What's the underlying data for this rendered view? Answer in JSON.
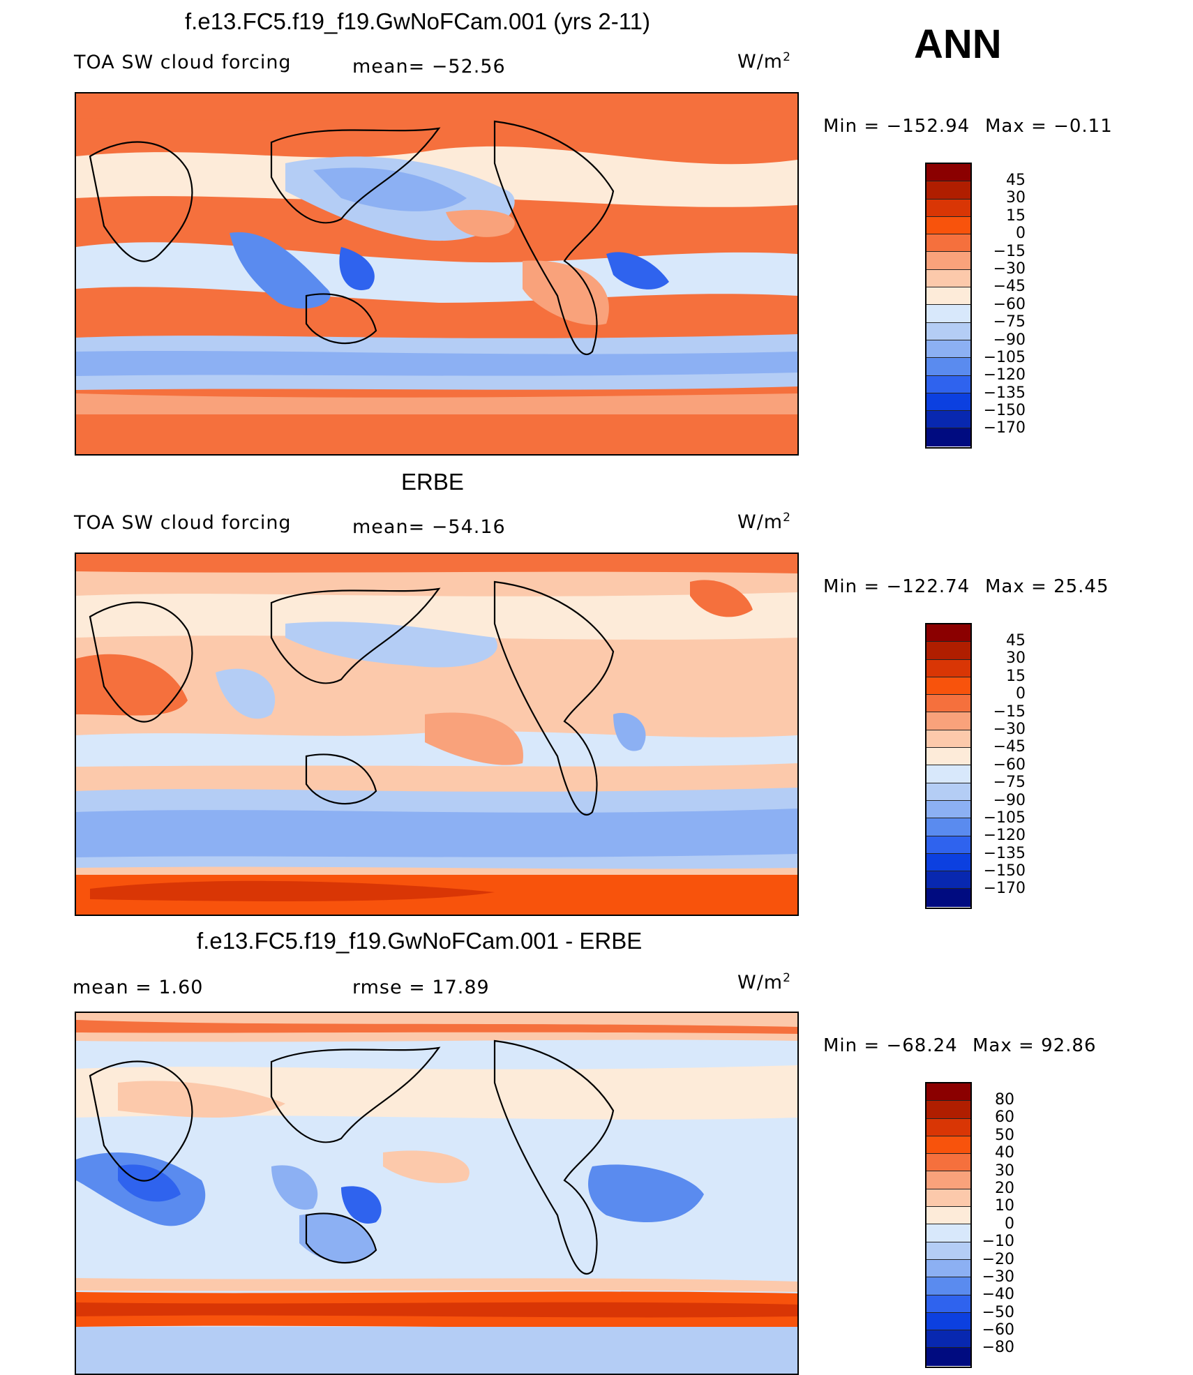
{
  "season": "ANN",
  "colors": {
    "scale14": [
      "#8b0000",
      "#b01e00",
      "#d93605",
      "#f8530c",
      "#f5703d",
      "#f9a27b",
      "#fcc9ab",
      "#fdebd9",
      "#d8e8fb",
      "#b4cdf5",
      "#8cb0f3",
      "#5a8bef",
      "#2f63ee",
      "#0c40e0",
      "#0828b0",
      "#000b80"
    ],
    "diff": [
      "#8b0000",
      "#b01e00",
      "#d93605",
      "#f8530c",
      "#f5703d",
      "#f9a27b",
      "#fcc9ab",
      "#fdebd9",
      "#d8e8fb",
      "#b4cdf5",
      "#8cb0f3",
      "#5a8bef",
      "#2f63ee",
      "#0c40e0",
      "#0828b0",
      "#000b80"
    ]
  },
  "panels": [
    {
      "title": "f.e13.FC5.f19_f19.GwNoFCam.001 (yrs 2-11)",
      "left_label": "TOA SW cloud forcing",
      "mid_label": "mean=  −52.56",
      "units_base": "W/m",
      "units_exp": "2",
      "min_label": "Min  =  −152.94",
      "max_label": "Max  =    −0.11",
      "levels": [
        "45",
        "30",
        "15",
        "0",
        "−15",
        "−30",
        "−45",
        "−60",
        "−75",
        "−90",
        "−105",
        "−120",
        "−135",
        "−150",
        "−170"
      ]
    },
    {
      "title": "ERBE",
      "left_label": "TOA SW cloud forcing",
      "mid_label": "mean=  −54.16",
      "units_base": "W/m",
      "units_exp": "2",
      "min_label": "Min  =  −122.74",
      "max_label": "Max  =    25.45",
      "levels": [
        "45",
        "30",
        "15",
        "0",
        "−15",
        "−30",
        "−45",
        "−60",
        "−75",
        "−90",
        "−105",
        "−120",
        "−135",
        "−150",
        "−170"
      ]
    },
    {
      "title": "f.e13.FC5.f19_f19.GwNoFCam.001 - ERBE",
      "left_label": "mean  =     1.60",
      "mid_label": "rmse  =    17.89",
      "units_base": "W/m",
      "units_exp": "2",
      "min_label": "Min  =  −68.24",
      "max_label": "Max  =    92.86",
      "levels": [
        "80",
        "60",
        "50",
        "40",
        "30",
        "20",
        "10",
        "0",
        "−10",
        "−20",
        "−30",
        "−40",
        "−50",
        "−60",
        "−80"
      ]
    }
  ]
}
